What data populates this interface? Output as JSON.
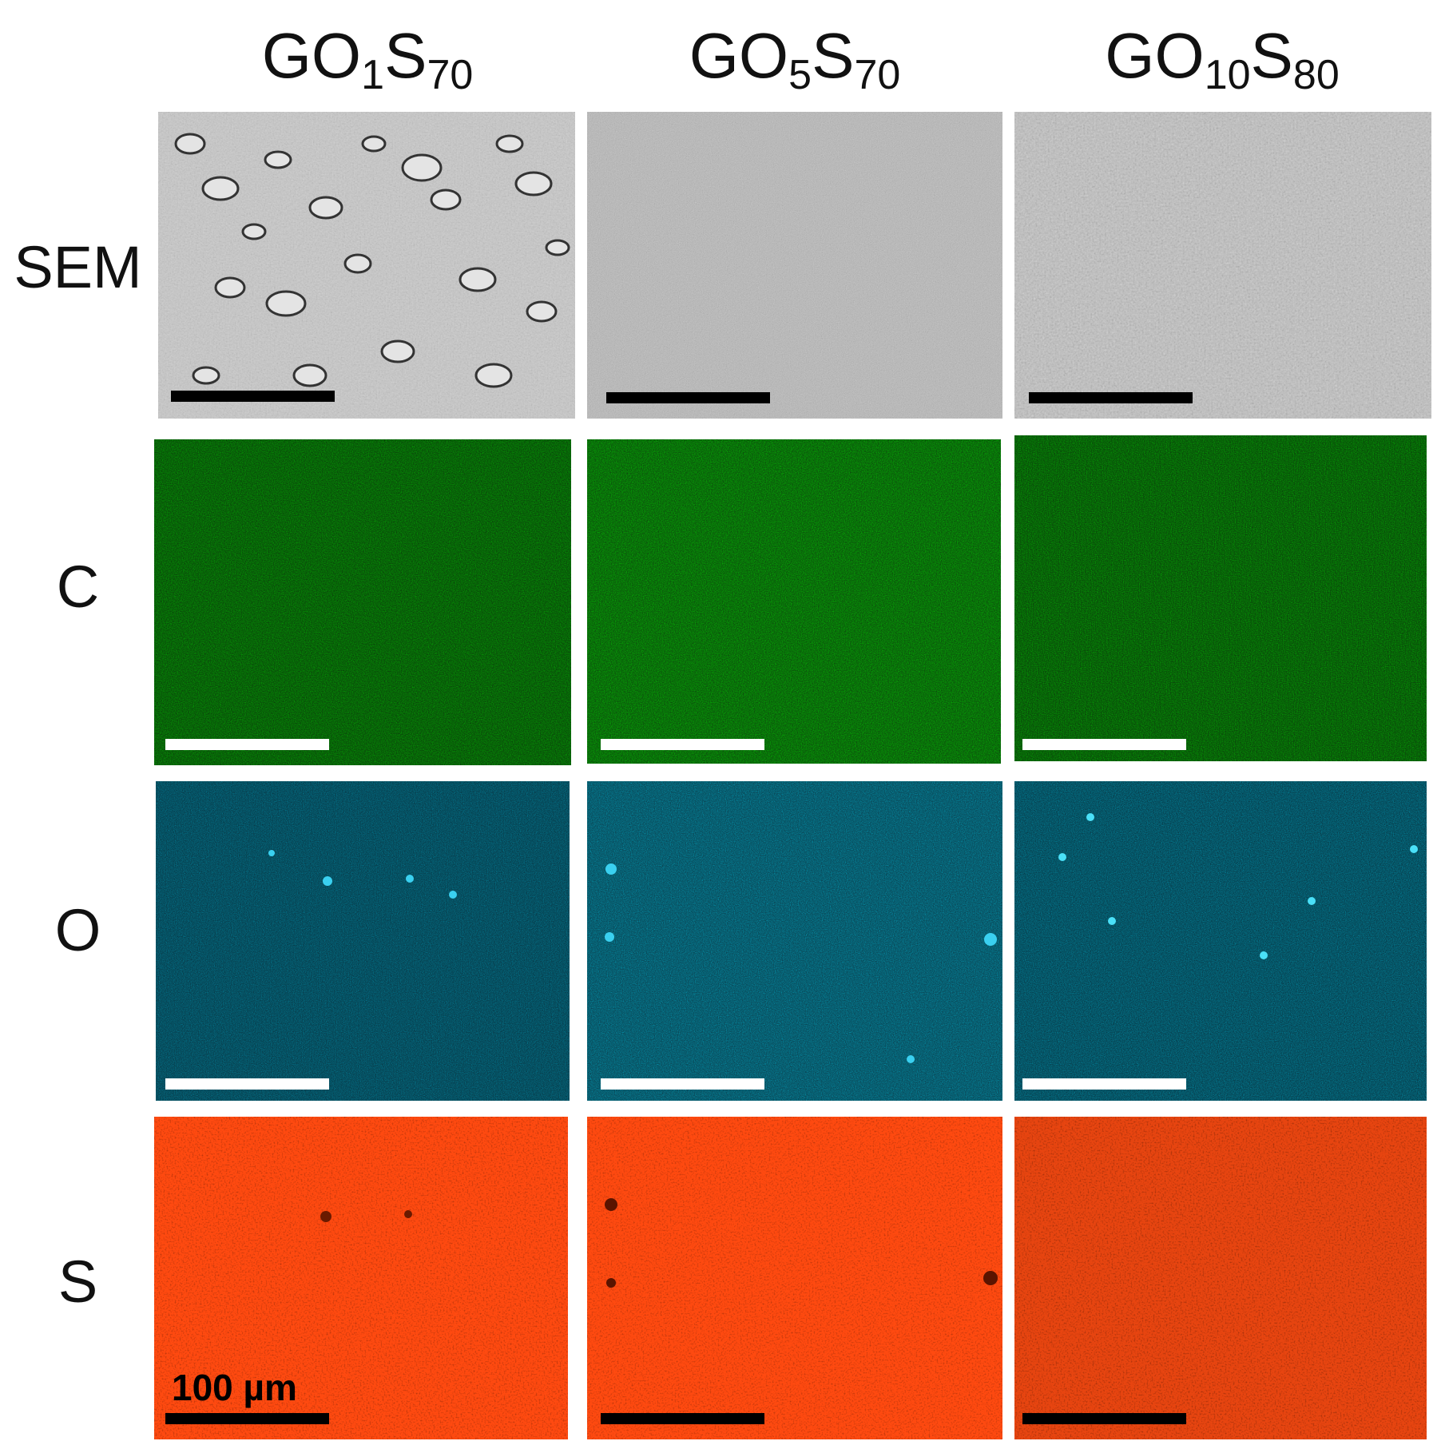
{
  "columns": [
    {
      "base": "GO",
      "sub1": "1",
      "mid": "S",
      "sub2": "70"
    },
    {
      "base": "GO",
      "sub1": "5",
      "mid": "S",
      "sub2": "70"
    },
    {
      "base": "GO",
      "sub1": "10",
      "mid": "S",
      "sub2": "80"
    }
  ],
  "rows": [
    "SEM",
    "C",
    "O",
    "S"
  ],
  "scale_label": "100 µm",
  "colors": {
    "sem": "#bdbdbd",
    "carbon": "#1f6e1f",
    "oxygen": "#0f4a5a",
    "sulfur": "#ff4a10",
    "scalebar_dark": "#000000",
    "scalebar_light": "#ffffff"
  }
}
